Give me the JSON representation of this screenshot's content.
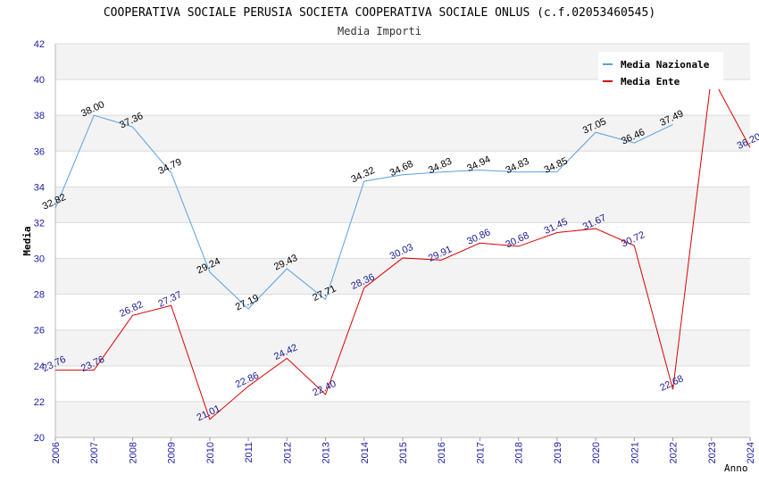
{
  "chart_data": {
    "type": "line",
    "title": "COOPERATIVA SOCIALE PERUSIA SOCIETA COOPERATIVA SOCIALE ONLUS (c.f.02053460545)",
    "subtitle": "Media Importi",
    "xlabel": "Anno",
    "ylabel": "Media",
    "ylim": [
      20,
      42
    ],
    "yticks": [
      "20",
      "22",
      "24",
      "26",
      "28",
      "30",
      "32",
      "34",
      "36",
      "38",
      "40",
      "42"
    ],
    "x": [
      "2006",
      "2007",
      "2008",
      "2009",
      "2010",
      "2011",
      "2012",
      "2013",
      "2014",
      "2015",
      "2016",
      "2017",
      "2018",
      "2019",
      "2020",
      "2021",
      "2022",
      "2023",
      "2024"
    ],
    "legend_position": "top-right",
    "grid": true,
    "series": [
      {
        "name": "Media Nazionale",
        "color": "#5aa0e0",
        "values": [
          32.82,
          38.0,
          37.36,
          34.79,
          29.24,
          27.19,
          29.43,
          27.71,
          34.32,
          34.68,
          34.83,
          34.94,
          34.83,
          34.85,
          37.05,
          36.46,
          37.49,
          null,
          null
        ],
        "labels": [
          "32.82",
          "38.00",
          "37.36",
          "34.79",
          "29.24",
          "27.19",
          "29.43",
          "27.71",
          "34.32",
          "34.68",
          "34.83",
          "34.94",
          "34.83",
          "34.85",
          "37.05",
          "36.46",
          "37.49",
          null,
          null
        ]
      },
      {
        "name": "Media Ente",
        "color": "#dd0000",
        "values": [
          23.76,
          23.76,
          26.82,
          27.37,
          21.01,
          22.86,
          24.42,
          22.4,
          28.36,
          30.03,
          29.91,
          30.86,
          30.68,
          31.45,
          31.67,
          30.72,
          22.68,
          40.2,
          36.2
        ],
        "labels": [
          "23.76",
          "23.76",
          "26.82",
          "27.37",
          "21.01",
          "22.86",
          "24.42",
          "22.40",
          "28.36",
          "30.03",
          "29.91",
          "30.86",
          "30.68",
          "31.45",
          "31.67",
          "30.72",
          "22.68",
          null,
          "36.20"
        ]
      }
    ]
  }
}
